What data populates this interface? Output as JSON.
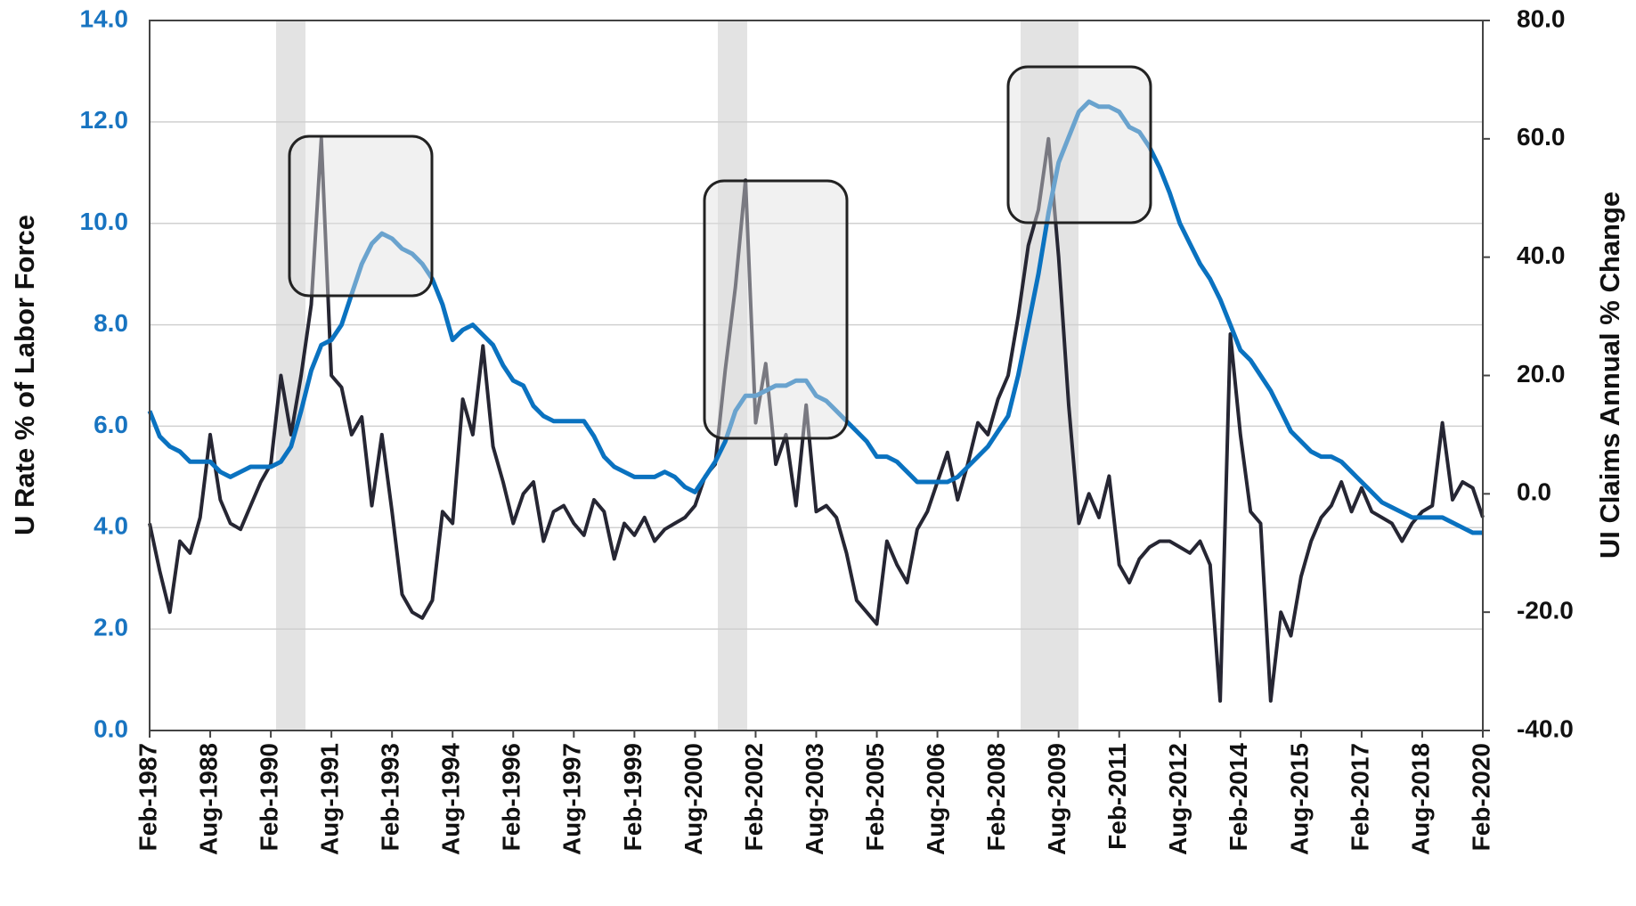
{
  "chart_data": {
    "type": "line",
    "categories": [
      "Feb-1987",
      null,
      null,
      null,
      null,
      null,
      "Aug-1988",
      null,
      null,
      null,
      null,
      null,
      "Feb-1990",
      null,
      null,
      null,
      null,
      null,
      "Aug-1991",
      null,
      null,
      null,
      null,
      null,
      "Feb-1993",
      null,
      null,
      null,
      null,
      null,
      "Aug-1994",
      null,
      null,
      null,
      null,
      null,
      "Feb-1996",
      null,
      null,
      null,
      null,
      null,
      "Aug-1997",
      null,
      null,
      null,
      null,
      null,
      "Feb-1999",
      null,
      null,
      null,
      null,
      null,
      "Aug-2000",
      null,
      null,
      null,
      null,
      null,
      "Feb-2002",
      null,
      null,
      null,
      null,
      null,
      "Aug-2003",
      null,
      null,
      null,
      null,
      null,
      "Feb-2005",
      null,
      null,
      null,
      null,
      null,
      "Aug-2006",
      null,
      null,
      null,
      null,
      null,
      "Feb-2008",
      null,
      null,
      null,
      null,
      null,
      "Aug-2009",
      null,
      null,
      null,
      null,
      null,
      "Feb-2011",
      null,
      null,
      null,
      null,
      null,
      "Aug-2012",
      null,
      null,
      null,
      null,
      null,
      "Feb-2014",
      null,
      null,
      null,
      null,
      null,
      "Aug-2015",
      null,
      null,
      null,
      null,
      null,
      "Feb-2017",
      null,
      null,
      null,
      null,
      null,
      "Aug-2018",
      null,
      null,
      null,
      null,
      null,
      "Feb-2020"
    ],
    "series": [
      {
        "color": "#0a72c0",
        "values": [
          6.3,
          5.8,
          5.6,
          5.5,
          5.3,
          5.3,
          5.3,
          5.1,
          5.0,
          5.1,
          5.2,
          5.2,
          5.2,
          5.3,
          5.6,
          6.3,
          7.1,
          7.6,
          7.7,
          8.0,
          8.6,
          9.2,
          9.6,
          9.8,
          9.7,
          9.5,
          9.4,
          9.2,
          8.9,
          8.4,
          7.7,
          7.9,
          8.0,
          7.8,
          7.6,
          7.2,
          6.9,
          6.8,
          6.4,
          6.2,
          6.1,
          6.1,
          6.1,
          6.1,
          5.8,
          5.4,
          5.2,
          5.1,
          5.0,
          5.0,
          5.0,
          5.1,
          5.0,
          4.8,
          4.7,
          5.0,
          5.3,
          5.7,
          6.3,
          6.6,
          6.6,
          6.7,
          6.8,
          6.8,
          6.9,
          6.9,
          6.6,
          6.5,
          6.3,
          6.1,
          5.9,
          5.7,
          5.4,
          5.4,
          5.3,
          5.1,
          4.9,
          4.9,
          4.9,
          4.9,
          5.0,
          5.2,
          5.4,
          5.6,
          5.9,
          6.2,
          7.0,
          8.0,
          9.0,
          10.2,
          11.2,
          11.7,
          12.2,
          12.4,
          12.3,
          12.3,
          12.2,
          11.9,
          11.8,
          11.5,
          11.1,
          10.6,
          10.0,
          9.6,
          9.2,
          8.9,
          8.5,
          8.0,
          7.5,
          7.3,
          7.0,
          6.7,
          6.3,
          5.9,
          5.7,
          5.5,
          5.4,
          5.4,
          5.3,
          5.1,
          4.9,
          4.7,
          4.5,
          4.4,
          4.3,
          4.2,
          4.2,
          4.2,
          4.2,
          4.1,
          4.0,
          3.9,
          3.9
        ]
      },
      {
        "color": "#262633",
        "axis": "y2",
        "values": [
          -5,
          -13,
          -20,
          -8,
          -10,
          -4,
          10,
          -1,
          -5,
          -6,
          -2,
          2,
          5,
          20,
          10,
          20,
          32,
          60,
          20,
          18,
          10,
          13,
          -2,
          10,
          -3,
          -17,
          -20,
          -21,
          -18,
          -3,
          -5,
          16,
          10,
          25,
          8,
          2,
          -5,
          0,
          2,
          -8,
          -3,
          -2,
          -5,
          -7,
          -1,
          -3,
          -11,
          -5,
          -7,
          -4,
          -8,
          -6,
          -5,
          -4,
          -2,
          3,
          5,
          21,
          35,
          53,
          12,
          22,
          5,
          10,
          -2,
          15,
          -3,
          -2,
          -4,
          -10,
          -18,
          -20,
          -22,
          -8,
          -12,
          -15,
          -6,
          -3,
          2,
          7,
          -1,
          5,
          12,
          10,
          16,
          20,
          30,
          42,
          48,
          60,
          40,
          15,
          -5,
          0,
          -4,
          3,
          -12,
          -15,
          -11,
          -9,
          -8,
          -8,
          -9,
          -10,
          -8,
          -12,
          -35,
          27,
          10,
          -3,
          -5,
          -35,
          -20,
          -24,
          -14,
          -8,
          -4,
          -2,
          2,
          -3,
          1,
          -3,
          -4,
          -5,
          -8,
          -5,
          -3,
          -2,
          12,
          -1,
          2,
          1,
          -4
        ]
      }
    ],
    "y_label": "U Rate % of Labor Force",
    "y2_label": "UI Claims Annual % Change",
    "ylim": [
      0,
      14
    ],
    "yticks": [
      {
        "value": 0,
        "label": "0.0"
      },
      {
        "value": 2,
        "label": "2.0"
      },
      {
        "value": 4,
        "label": "4.0"
      },
      {
        "value": 6,
        "label": "6.0"
      },
      {
        "value": 8,
        "label": "8.0"
      },
      {
        "value": 10,
        "label": "10.0"
      },
      {
        "value": 12,
        "label": "12.0"
      },
      {
        "value": 14,
        "label": "14.0"
      }
    ],
    "y2lim": [
      -40,
      80
    ],
    "y2ticks": [
      {
        "value": -40,
        "label": "-40.0"
      },
      {
        "value": -20,
        "label": "-20.0"
      },
      {
        "value": 0,
        "label": "0.0"
      },
      {
        "value": 20,
        "label": "20.0"
      },
      {
        "value": 40,
        "label": "40.0"
      },
      {
        "value": 60,
        "label": "60.0"
      },
      {
        "value": 80,
        "label": "80.0"
      }
    ],
    "grid": true
  }
}
